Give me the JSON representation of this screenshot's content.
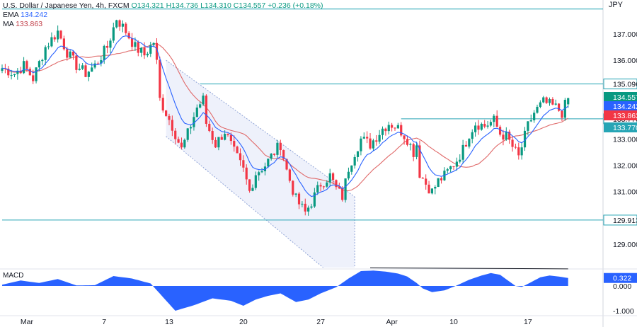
{
  "header": {
    "symbol": "U.S. Dollar / Japanese Yen, 4h, FXCM",
    "o_label": "O",
    "o_value": "134.321",
    "h_label": "H",
    "h_value": "134.736",
    "l_label": "L",
    "l_value": "134.310",
    "c_label": "C",
    "c_value": "134.557",
    "change": "+0.236 (+0.18%)",
    "ema_label": "EMA",
    "ema_value": "134.242",
    "ma_label": "MA",
    "ma_value": "133.863"
  },
  "currency_label": "JPY",
  "macd_label": "MACD",
  "colors": {
    "up": "#089981",
    "down": "#f23645",
    "ema": "#2962ff",
    "ma": "#e06a6a",
    "level": "#26a5b5",
    "macd": "#2962ff",
    "channel": "#8fa3d6"
  },
  "chart_data": {
    "type": "candlestick",
    "ylim": [
      128.0,
      138.0
    ],
    "y_ticks": [
      {
        "v": 137.0,
        "label": "137.000"
      },
      {
        "v": 136.0,
        "label": "136.000"
      },
      {
        "v": 135.0,
        "label": "135.000"
      },
      {
        "v": 133.0,
        "label": "133.000"
      },
      {
        "v": 132.0,
        "label": "132.000"
      },
      {
        "v": 131.0,
        "label": "131.000"
      },
      {
        "v": 129.0,
        "label": "129.000"
      }
    ],
    "x_ticks": [
      {
        "i": 8,
        "label": "Mar"
      },
      {
        "i": 33,
        "label": "7"
      },
      {
        "i": 54,
        "label": "13"
      },
      {
        "i": 78,
        "label": "20"
      },
      {
        "i": 103,
        "label": "27"
      },
      {
        "i": 126,
        "label": "Apr"
      },
      {
        "i": 146,
        "label": "10"
      },
      {
        "i": 170,
        "label": "17"
      }
    ],
    "levels": [
      {
        "v": 135.096,
        "label": "135.096",
        "from": 64
      },
      {
        "v": 133.77,
        "label": "133.770",
        "from": 129
      },
      {
        "v": 129.913,
        "label": "129.913",
        "from": 0
      },
      {
        "v": 137.95,
        "label": "",
        "from": 0
      }
    ],
    "price_tags": [
      {
        "v": 134.557,
        "label": "134.557",
        "color": "#089981"
      },
      {
        "v": 134.242,
        "label": "134.242",
        "color": "#2962ff"
      },
      {
        "v": 133.863,
        "label": "133.863",
        "color": "#f23645"
      }
    ],
    "anchors": [
      [
        0,
        135.7
      ],
      [
        4,
        135.5
      ],
      [
        7,
        135.8
      ],
      [
        10,
        135.3
      ],
      [
        14,
        136.5
      ],
      [
        18,
        137.1
      ],
      [
        21,
        136.3
      ],
      [
        24,
        135.8
      ],
      [
        27,
        135.5
      ],
      [
        30,
        135.8
      ],
      [
        34,
        136.5
      ],
      [
        37,
        137.6
      ],
      [
        40,
        137.1
      ],
      [
        43,
        136.5
      ],
      [
        46,
        136.2
      ],
      [
        49,
        136.7
      ],
      [
        50,
        135.9
      ],
      [
        51,
        134.5
      ],
      [
        55,
        133.5
      ],
      [
        58,
        132.6
      ],
      [
        60,
        133.2
      ],
      [
        63,
        134.2
      ],
      [
        65,
        134.5
      ],
      [
        66,
        133.6
      ],
      [
        69,
        132.8
      ],
      [
        72,
        133.3
      ],
      [
        75,
        132.5
      ],
      [
        78,
        131.8
      ],
      [
        80,
        131.0
      ],
      [
        82,
        131.7
      ],
      [
        85,
        132.0
      ],
      [
        88,
        132.5
      ],
      [
        90,
        132.8
      ],
      [
        92,
        131.8
      ],
      [
        95,
        130.7
      ],
      [
        98,
        130.2
      ],
      [
        100,
        130.6
      ],
      [
        103,
        131.3
      ],
      [
        106,
        131.6
      ],
      [
        108,
        131.1
      ],
      [
        110,
        130.8
      ],
      [
        112,
        131.9
      ],
      [
        114,
        132.5
      ],
      [
        116,
        133.0
      ],
      [
        119,
        132.8
      ],
      [
        121,
        133.1
      ],
      [
        123,
        133.4
      ],
      [
        125,
        133.6
      ],
      [
        127,
        133.5
      ],
      [
        129,
        133.3
      ],
      [
        131,
        133.0
      ],
      [
        133,
        132.5
      ],
      [
        134,
        132.8
      ],
      [
        135,
        131.7
      ],
      [
        137,
        131.3
      ],
      [
        139,
        131.0
      ],
      [
        141,
        131.4
      ],
      [
        143,
        131.6
      ],
      [
        145,
        131.9
      ],
      [
        147,
        132.2
      ],
      [
        149,
        132.6
      ],
      [
        151,
        133.2
      ],
      [
        153,
        133.6
      ],
      [
        156,
        133.5
      ],
      [
        159,
        133.7
      ],
      [
        161,
        133.2
      ],
      [
        163,
        133.1
      ],
      [
        165,
        132.7
      ],
      [
        167,
        132.3
      ],
      [
        168,
        132.7
      ],
      [
        170,
        133.5
      ],
      [
        172,
        134.0
      ],
      [
        175,
        134.4
      ],
      [
        177,
        134.3
      ],
      [
        179,
        134.2
      ],
      [
        181,
        134.0
      ],
      [
        183,
        134.56
      ]
    ],
    "macd_anchors": [
      [
        0,
        0.05
      ],
      [
        6,
        0.22
      ],
      [
        12,
        0.12
      ],
      [
        18,
        0.28
      ],
      [
        24,
        0.02
      ],
      [
        30,
        0.03
      ],
      [
        36,
        0.4
      ],
      [
        42,
        0.3
      ],
      [
        48,
        0.1
      ],
      [
        52,
        -0.45
      ],
      [
        56,
        -1.0
      ],
      [
        62,
        -0.78
      ],
      [
        68,
        -0.5
      ],
      [
        74,
        -0.6
      ],
      [
        78,
        -0.8
      ],
      [
        82,
        -0.55
      ],
      [
        86,
        -0.4
      ],
      [
        90,
        -0.3
      ],
      [
        95,
        -0.65
      ],
      [
        99,
        -0.55
      ],
      [
        103,
        -0.3
      ],
      [
        108,
        -0.05
      ],
      [
        112,
        0.3
      ],
      [
        116,
        0.6
      ],
      [
        120,
        0.62
      ],
      [
        124,
        0.58
      ],
      [
        128,
        0.5
      ],
      [
        131,
        0.38
      ],
      [
        134,
        0.12
      ],
      [
        136,
        -0.1
      ],
      [
        139,
        -0.25
      ],
      [
        143,
        -0.18
      ],
      [
        147,
        0.02
      ],
      [
        151,
        0.25
      ],
      [
        155,
        0.42
      ],
      [
        158,
        0.52
      ],
      [
        161,
        0.45
      ],
      [
        164,
        0.18
      ],
      [
        166,
        0.0
      ],
      [
        168,
        -0.04
      ],
      [
        171,
        0.15
      ],
      [
        174,
        0.35
      ],
      [
        177,
        0.42
      ],
      [
        180,
        0.38
      ],
      [
        183,
        0.32
      ]
    ],
    "macd_ylim": [
      -1.1,
      0.75
    ],
    "macd_ticks": [
      {
        "v": 0.0,
        "label": "0.000"
      },
      {
        "v": -1.0,
        "label": "-1.000"
      }
    ],
    "macd_value_tag": {
      "v": 0.322,
      "label": "0.322"
    },
    "macd_trendline": [
      [
        119,
        0.73
      ],
      [
        183,
        0.69
      ]
    ],
    "channel": {
      "upper": [
        [
          53,
          136.0
        ],
        [
          114,
          130.8
        ]
      ],
      "lower": [
        [
          53,
          133.1
        ],
        [
          114,
          127.1
        ]
      ],
      "end": 114
    },
    "n_bars": 184
  }
}
